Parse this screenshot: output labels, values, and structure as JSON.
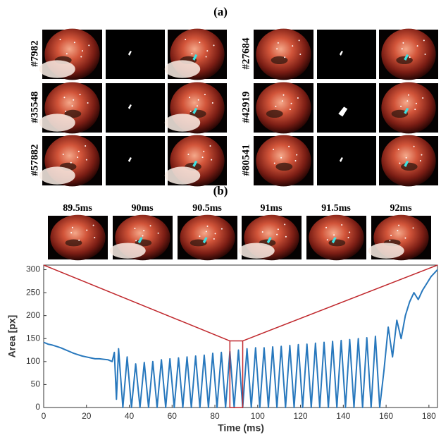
{
  "figure": {
    "panel_a_label": "(a)",
    "panel_a": [
      "#7982",
      "#27684",
      "#35548",
      "#42919",
      "#57882",
      "#80541"
    ],
    "panel_b_label": "(b)",
    "frames": [
      "89.5ms",
      "90ms",
      "90.5ms",
      "91ms",
      "91.5ms",
      "92ms"
    ]
  },
  "chart_data": {
    "type": "line",
    "xlabel": "Time (ms)",
    "ylabel": "Area [px]",
    "color": "#2878bd",
    "x": [
      0,
      2,
      4,
      6,
      8,
      10,
      12,
      14,
      16,
      18,
      20,
      22,
      24,
      26,
      28,
      30,
      32,
      33,
      34,
      35,
      37,
      39,
      41,
      43,
      45,
      47,
      49,
      51,
      53,
      55,
      57,
      59,
      61,
      63,
      65,
      67,
      69,
      71,
      73,
      75,
      77,
      79,
      81,
      83,
      85,
      87,
      89,
      91,
      93,
      95,
      97,
      99,
      101,
      103,
      105,
      107,
      109,
      111,
      113,
      115,
      117,
      119,
      121,
      123,
      125,
      127,
      129,
      131,
      133,
      135,
      137,
      139,
      141,
      143,
      145,
      147,
      149,
      151,
      153,
      155,
      157,
      159,
      161,
      163,
      165,
      167,
      169,
      171,
      173,
      175,
      177,
      179,
      181,
      183,
      184
    ],
    "values": [
      142,
      138,
      136,
      133,
      130,
      126,
      122,
      118,
      115,
      112,
      110,
      108,
      106,
      106,
      105,
      104,
      100,
      120,
      18,
      128,
      0,
      110,
      0,
      95,
      0,
      98,
      0,
      100,
      0,
      104,
      0,
      106,
      0,
      108,
      0,
      110,
      0,
      112,
      0,
      114,
      0,
      118,
      0,
      120,
      0,
      122,
      0,
      125,
      0,
      128,
      0,
      130,
      0,
      130,
      0,
      132,
      0,
      133,
      0,
      135,
      0,
      137,
      0,
      138,
      0,
      140,
      0,
      142,
      0,
      144,
      0,
      146,
      0,
      148,
      0,
      150,
      0,
      152,
      0,
      155,
      0,
      80,
      175,
      110,
      190,
      150,
      200,
      230,
      250,
      235,
      255,
      270,
      285,
      295,
      300
    ],
    "xlim": [
      0,
      184
    ],
    "ylim": [
      0,
      310
    ],
    "xticks": [
      0,
      20,
      40,
      60,
      80,
      100,
      120,
      140,
      160,
      180
    ],
    "yticks": [
      0,
      50,
      100,
      150,
      200,
      250,
      300
    ],
    "highlight_x": [
      87,
      93
    ],
    "highlight_color": "#c0282d"
  }
}
